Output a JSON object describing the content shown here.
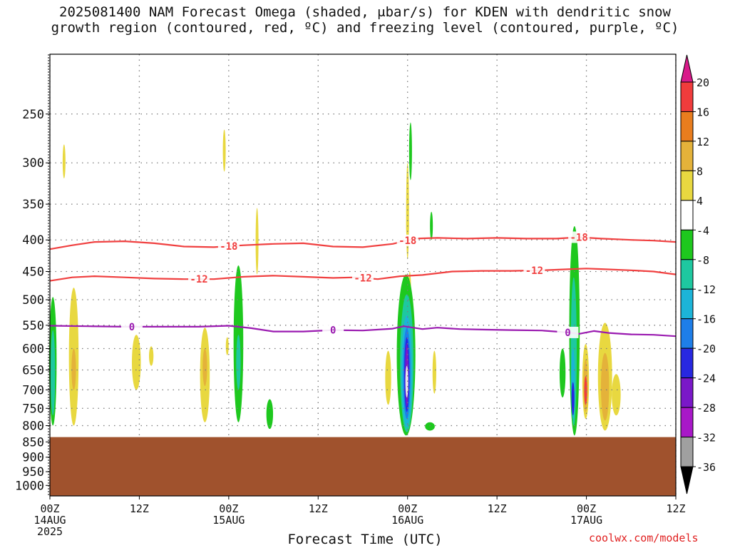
{
  "title": {
    "line1": "2025081400 NAM Forecast Omega (shaded, μbar/s) for KDEN with dendritic snow",
    "line2": "growth region (contoured, red, ºC) and freezing level (contoured, purple, ºC)"
  },
  "watermark": "coolwx.com/models",
  "chart_data": {
    "type": "heatmap",
    "xlabel": "Forecast Time (UTC)",
    "ylabel": "",
    "x_range_hours": [
      0,
      84
    ],
    "y_axis": {
      "scale": "log",
      "reversed": true,
      "ylim": [
        1040,
        200
      ]
    },
    "xticks": [
      {
        "hour": 0,
        "lines": [
          "00Z",
          "14AUG",
          "2025"
        ]
      },
      {
        "hour": 12,
        "lines": [
          "12Z"
        ]
      },
      {
        "hour": 24,
        "lines": [
          "00Z",
          "15AUG"
        ]
      },
      {
        "hour": 36,
        "lines": [
          "12Z"
        ]
      },
      {
        "hour": 48,
        "lines": [
          "00Z",
          "16AUG"
        ]
      },
      {
        "hour": 60,
        "lines": [
          "12Z"
        ]
      },
      {
        "hour": 72,
        "lines": [
          "00Z",
          "17AUG"
        ]
      },
      {
        "hour": 84,
        "lines": [
          "12Z"
        ]
      }
    ],
    "yticks": [
      250,
      300,
      350,
      400,
      450,
      500,
      550,
      600,
      650,
      700,
      750,
      800,
      850,
      900,
      950,
      1000
    ],
    "grid": true,
    "terrain": {
      "surface_pressure_hpa": 835,
      "color": "#a0522d"
    },
    "contours": [
      {
        "name": "-18",
        "color": "#f04040",
        "label_hours": [
          24,
          48,
          71
        ],
        "points": [
          [
            0,
            414
          ],
          [
            3,
            408
          ],
          [
            6,
            403
          ],
          [
            10,
            402
          ],
          [
            14,
            405
          ],
          [
            18,
            410
          ],
          [
            22,
            411
          ],
          [
            26,
            408
          ],
          [
            30,
            406
          ],
          [
            34,
            405
          ],
          [
            38,
            410
          ],
          [
            42,
            411
          ],
          [
            46,
            406
          ],
          [
            49,
            398
          ],
          [
            52,
            397
          ],
          [
            56,
            398
          ],
          [
            60,
            397
          ],
          [
            64,
            398
          ],
          [
            68,
            398
          ],
          [
            71,
            396
          ],
          [
            74,
            398
          ],
          [
            78,
            400
          ],
          [
            81,
            401
          ],
          [
            84,
            403
          ]
        ]
      },
      {
        "name": "-12",
        "color": "#f04040",
        "label_hours": [
          20,
          42,
          65
        ],
        "points": [
          [
            0,
            466
          ],
          [
            3,
            460
          ],
          [
            6,
            458
          ],
          [
            10,
            460
          ],
          [
            14,
            462
          ],
          [
            18,
            463
          ],
          [
            22,
            463
          ],
          [
            26,
            459
          ],
          [
            30,
            457
          ],
          [
            34,
            459
          ],
          [
            38,
            461
          ],
          [
            41,
            460
          ],
          [
            44,
            463
          ],
          [
            47,
            458
          ],
          [
            50,
            456
          ],
          [
            54,
            450
          ],
          [
            58,
            449
          ],
          [
            62,
            449
          ],
          [
            66,
            448
          ],
          [
            70,
            446
          ],
          [
            72,
            445
          ],
          [
            74,
            446
          ],
          [
            78,
            448
          ],
          [
            81,
            450
          ],
          [
            84,
            455
          ]
        ]
      },
      {
        "name": "0",
        "color": "#9a1ab0",
        "label_hours": [
          11,
          38,
          69.5
        ],
        "points": [
          [
            0,
            551
          ],
          [
            5,
            552
          ],
          [
            10,
            553
          ],
          [
            15,
            553
          ],
          [
            20,
            553
          ],
          [
            24,
            551
          ],
          [
            27,
            556
          ],
          [
            30,
            563
          ],
          [
            34,
            563
          ],
          [
            38,
            560
          ],
          [
            42,
            561
          ],
          [
            46,
            557
          ],
          [
            47.5,
            552
          ],
          [
            50,
            558
          ],
          [
            52,
            555
          ],
          [
            55,
            558
          ],
          [
            58,
            559
          ],
          [
            62,
            560
          ],
          [
            66,
            561
          ],
          [
            69.5,
            565
          ],
          [
            71,
            568
          ],
          [
            73,
            562
          ],
          [
            75,
            566
          ],
          [
            78,
            569
          ],
          [
            81,
            570
          ],
          [
            84,
            573
          ]
        ]
      }
    ],
    "colorbar": {
      "levels": [
        20,
        16,
        12,
        8,
        4,
        -4,
        -8,
        -12,
        -16,
        -20,
        -24,
        -28,
        -32,
        -36
      ],
      "colors": [
        "#d81a8a",
        "#f03c3c",
        "#e87d1e",
        "#e4b23a",
        "#e8d840",
        "#ffffff",
        "#1ec81e",
        "#1ec8a0",
        "#1cb4d8",
        "#1e7ee8",
        "#2828e0",
        "#7a18c8",
        "#a818c8",
        "#a0a0a0",
        "#000000"
      ]
    },
    "shaded_regions": [
      {
        "time": 1.9,
        "p_top": 280,
        "p_bottom": 318,
        "width_h": 0.25,
        "color": "#e8d840"
      },
      {
        "time": 23.4,
        "p_top": 265,
        "p_bottom": 310,
        "width_h": 0.25,
        "color": "#e8d840"
      },
      {
        "time": 27.8,
        "p_top": 355,
        "p_bottom": 455,
        "width_h": 0.35,
        "color": "#e8d840"
      },
      {
        "time": 48.0,
        "p_top": 300,
        "p_bottom": 430,
        "width_h": 0.35,
        "color": "#e8d840"
      },
      {
        "time": 48.4,
        "p_top": 258,
        "p_bottom": 320,
        "width_h": 0.2,
        "color": "#1ec81e"
      },
      {
        "time": 51.2,
        "p_top": 360,
        "p_bottom": 400,
        "width_h": 0.2,
        "color": "#1ec81e"
      },
      {
        "time": 0.4,
        "p_top": 495,
        "p_bottom": 800,
        "width_h": 1.0,
        "color": "#1ec81e"
      },
      {
        "time": 0.4,
        "p_top": 560,
        "p_bottom": 770,
        "width_h": 0.6,
        "color": "#1ec8a0"
      },
      {
        "time": 3.2,
        "p_top": 478,
        "p_bottom": 800,
        "width_h": 1.3,
        "color": "#e8d840"
      },
      {
        "time": 3.2,
        "p_top": 600,
        "p_bottom": 700,
        "width_h": 0.6,
        "color": "#e4b23a"
      },
      {
        "time": 11.6,
        "p_top": 570,
        "p_bottom": 700,
        "width_h": 1.2,
        "color": "#e8d840"
      },
      {
        "time": 11.8,
        "p_top": 595,
        "p_bottom": 640,
        "width_h": 0.6,
        "color": "#e8d840"
      },
      {
        "time": 13.6,
        "p_top": 595,
        "p_bottom": 640,
        "width_h": 0.6,
        "color": "#e8d840"
      },
      {
        "time": 20.8,
        "p_top": 555,
        "p_bottom": 790,
        "width_h": 1.3,
        "color": "#e8d840"
      },
      {
        "time": 20.8,
        "p_top": 600,
        "p_bottom": 690,
        "width_h": 0.6,
        "color": "#e4b23a"
      },
      {
        "time": 23.8,
        "p_top": 575,
        "p_bottom": 615,
        "width_h": 0.35,
        "color": "#e8d840"
      },
      {
        "time": 25.3,
        "p_top": 440,
        "p_bottom": 790,
        "width_h": 1.3,
        "color": "#1ec81e"
      },
      {
        "time": 25.3,
        "p_top": 570,
        "p_bottom": 700,
        "width_h": 0.6,
        "color": "#1ec8a0"
      },
      {
        "time": 29.5,
        "p_top": 725,
        "p_bottom": 810,
        "width_h": 0.9,
        "color": "#1ec81e"
      },
      {
        "time": 48.0,
        "p_top": 360,
        "p_bottom": 400,
        "width_h": 0.2,
        "color": "#e8d840"
      },
      {
        "time": 48.3,
        "p_top": 450,
        "p_bottom": 560,
        "width_h": 0.2,
        "color": "#e8d840"
      },
      {
        "time": 45.4,
        "p_top": 605,
        "p_bottom": 740,
        "width_h": 0.8,
        "color": "#e8d840"
      },
      {
        "time": 51.6,
        "p_top": 605,
        "p_bottom": 710,
        "width_h": 0.5,
        "color": "#e8d840"
      },
      {
        "time": 47.8,
        "p_top": 455,
        "p_bottom": 830,
        "width_h": 2.5,
        "color": "#1ec81e"
      },
      {
        "time": 51.0,
        "p_top": 790,
        "p_bottom": 815,
        "width_h": 1.3,
        "color": "#1ec81e"
      },
      {
        "time": 47.9,
        "p_top": 490,
        "p_bottom": 820,
        "width_h": 1.8,
        "color": "#1ec8a0"
      },
      {
        "time": 47.9,
        "p_top": 530,
        "p_bottom": 805,
        "width_h": 1.4,
        "color": "#1cb4d8"
      },
      {
        "time": 47.9,
        "p_top": 555,
        "p_bottom": 780,
        "width_h": 1.0,
        "color": "#1e7ee8"
      },
      {
        "time": 47.9,
        "p_top": 575,
        "p_bottom": 760,
        "width_h": 0.7,
        "color": "#2828e0"
      },
      {
        "time": 47.9,
        "p_top": 590,
        "p_bottom": 745,
        "width_h": 0.45,
        "color": "#7a18c8"
      },
      {
        "time": 47.9,
        "p_top": 640,
        "p_bottom": 720,
        "width_h": 0.12,
        "color": "#e8e8e8"
      },
      {
        "time": 68.8,
        "p_top": 600,
        "p_bottom": 720,
        "width_h": 0.8,
        "color": "#1ec81e"
      },
      {
        "time": 70.4,
        "p_top": 380,
        "p_bottom": 830,
        "width_h": 1.4,
        "color": "#1ec81e"
      },
      {
        "time": 70.3,
        "p_top": 460,
        "p_bottom": 800,
        "width_h": 0.8,
        "color": "#1ec8a0"
      },
      {
        "time": 70.2,
        "p_top": 600,
        "p_bottom": 780,
        "width_h": 0.5,
        "color": "#1cb4d8"
      },
      {
        "time": 70.2,
        "p_top": 680,
        "p_bottom": 770,
        "width_h": 0.3,
        "color": "#2828e0"
      },
      {
        "time": 71.9,
        "p_top": 590,
        "p_bottom": 780,
        "width_h": 0.9,
        "color": "#e8d840"
      },
      {
        "time": 71.9,
        "p_top": 625,
        "p_bottom": 760,
        "width_h": 0.6,
        "color": "#e4b23a"
      },
      {
        "time": 71.9,
        "p_top": 665,
        "p_bottom": 740,
        "width_h": 0.3,
        "color": "#f03c3c"
      },
      {
        "time": 74.5,
        "p_top": 545,
        "p_bottom": 815,
        "width_h": 1.9,
        "color": "#e8d840"
      },
      {
        "time": 74.5,
        "p_top": 610,
        "p_bottom": 785,
        "width_h": 1.1,
        "color": "#e4b23a"
      },
      {
        "time": 76.0,
        "p_top": 660,
        "p_bottom": 770,
        "width_h": 1.2,
        "color": "#e8d840"
      }
    ]
  }
}
